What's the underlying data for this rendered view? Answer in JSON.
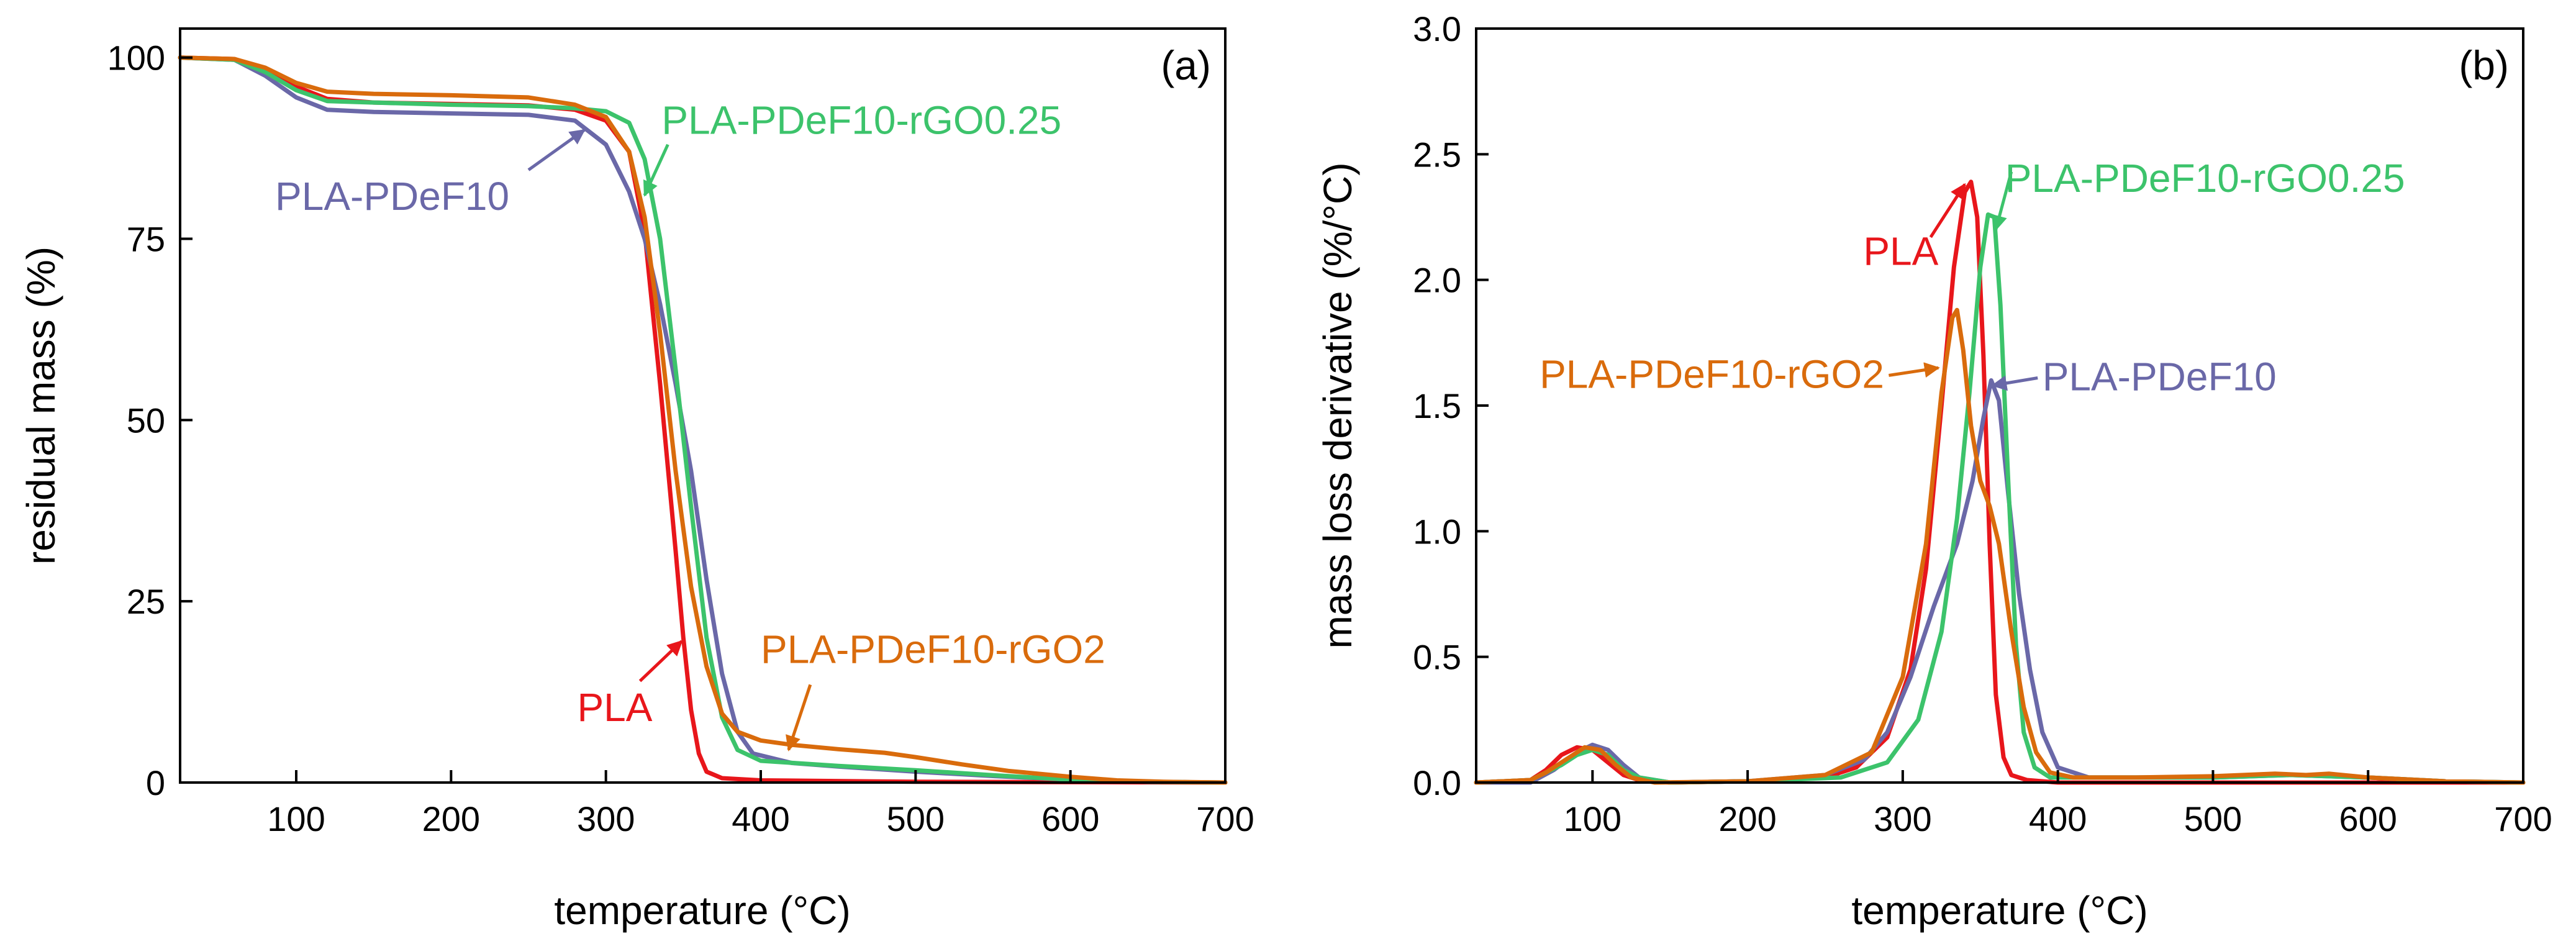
{
  "colors": {
    "PLA": "#e8161b",
    "PLA-PDeF10": "#6a68a8",
    "PLA-PDeF10-rGO0.25": "#3cc36b",
    "PLA-PDeF10-rGO2": "#d96b0c"
  },
  "chart_data": [
    {
      "type": "line",
      "panel_tag": "(a)",
      "xlabel": "temperature (°C)",
      "ylabel": "residual mass (%)",
      "xlim": [
        25,
        700
      ],
      "ylim": [
        0,
        104
      ],
      "xticks": [
        100,
        200,
        300,
        400,
        500,
        600,
        700
      ],
      "yticks": [
        0,
        25,
        50,
        75,
        100
      ],
      "grid": false,
      "series": [
        {
          "name": "PLA",
          "points": [
            [
              25,
              100
            ],
            [
              60,
              99.8
            ],
            [
              80,
              98.5
            ],
            [
              100,
              96
            ],
            [
              120,
              94.3
            ],
            [
              150,
              93.8
            ],
            [
              200,
              93.6
            ],
            [
              250,
              93.4
            ],
            [
              280,
              92.8
            ],
            [
              300,
              91.3
            ],
            [
              315,
              87
            ],
            [
              325,
              76
            ],
            [
              335,
              55
            ],
            [
              345,
              32
            ],
            [
              350,
              20
            ],
            [
              355,
              10
            ],
            [
              360,
              4
            ],
            [
              365,
              1.5
            ],
            [
              375,
              0.6
            ],
            [
              400,
              0.3
            ],
            [
              500,
              0.1
            ],
            [
              700,
              0
            ]
          ]
        },
        {
          "name": "PLA-PDeF10",
          "points": [
            [
              25,
              100
            ],
            [
              60,
              99.7
            ],
            [
              80,
              97.5
            ],
            [
              100,
              94.5
            ],
            [
              120,
              92.8
            ],
            [
              150,
              92.5
            ],
            [
              200,
              92.3
            ],
            [
              250,
              92.1
            ],
            [
              280,
              91.3
            ],
            [
              300,
              88
            ],
            [
              315,
              81.5
            ],
            [
              325,
              75
            ],
            [
              335,
              66
            ],
            [
              345,
              55
            ],
            [
              355,
              43
            ],
            [
              365,
              28
            ],
            [
              375,
              15
            ],
            [
              385,
              7
            ],
            [
              395,
              4
            ],
            [
              420,
              2.7
            ],
            [
              450,
              2.2
            ],
            [
              500,
              1.5
            ],
            [
              550,
              0.9
            ],
            [
              600,
              0.4
            ],
            [
              650,
              0.1
            ],
            [
              700,
              0
            ]
          ]
        },
        {
          "name": "PLA-PDeF10-rGO0.25",
          "points": [
            [
              25,
              100
            ],
            [
              60,
              99.7
            ],
            [
              80,
              98
            ],
            [
              100,
              95.5
            ],
            [
              120,
              94
            ],
            [
              150,
              93.8
            ],
            [
              200,
              93.5
            ],
            [
              250,
              93.3
            ],
            [
              280,
              93
            ],
            [
              300,
              92.6
            ],
            [
              315,
              91
            ],
            [
              325,
              86
            ],
            [
              335,
              75
            ],
            [
              345,
              57
            ],
            [
              355,
              38
            ],
            [
              365,
              20
            ],
            [
              375,
              9
            ],
            [
              385,
              4.5
            ],
            [
              400,
              3
            ],
            [
              450,
              2.3
            ],
            [
              500,
              1.7
            ],
            [
              550,
              1
            ],
            [
              600,
              0.4
            ],
            [
              650,
              0.1
            ],
            [
              700,
              0
            ]
          ]
        },
        {
          "name": "PLA-PDeF10-rGO2",
          "points": [
            [
              25,
              100
            ],
            [
              60,
              99.8
            ],
            [
              80,
              98.6
            ],
            [
              100,
              96.5
            ],
            [
              120,
              95.3
            ],
            [
              150,
              95
            ],
            [
              200,
              94.8
            ],
            [
              250,
              94.5
            ],
            [
              280,
              93.5
            ],
            [
              300,
              91.8
            ],
            [
              315,
              87
            ],
            [
              325,
              78
            ],
            [
              335,
              62
            ],
            [
              345,
              43
            ],
            [
              355,
              27
            ],
            [
              365,
              16
            ],
            [
              375,
              9.5
            ],
            [
              385,
              7
            ],
            [
              400,
              5.8
            ],
            [
              420,
              5.2
            ],
            [
              450,
              4.6
            ],
            [
              480,
              4.1
            ],
            [
              500,
              3.5
            ],
            [
              530,
              2.5
            ],
            [
              560,
              1.6
            ],
            [
              600,
              0.8
            ],
            [
              630,
              0.3
            ],
            [
              660,
              0.1
            ],
            [
              700,
              0
            ]
          ]
        }
      ],
      "annotations": [
        {
          "series": "PLA-PDeF10",
          "text": "PLA-PDeF10",
          "text_at": [
            162,
            79
          ],
          "anchor": "middle",
          "arrow_from": [
            250,
            84.5
          ],
          "arrow_to": [
            286,
            90
          ]
        },
        {
          "series": "PLA-PDeF10-rGO0.25",
          "text": "PLA-PDeF10-rGO0.25",
          "text_at": [
            336,
            89.5
          ],
          "anchor": "start",
          "arrow_from": [
            340,
            88
          ],
          "arrow_to": [
            325,
            81
          ]
        },
        {
          "series": "PLA",
          "text": "PLA",
          "text_at": [
            330,
            8.5
          ],
          "anchor": "end",
          "arrow_from": [
            322,
            14
          ],
          "arrow_to": [
            349,
            19.5
          ]
        },
        {
          "series": "PLA-PDeF10-rGO2",
          "text": "PLA-PDeF10-rGO2",
          "text_at": [
            400,
            16.5
          ],
          "anchor": "start",
          "arrow_from": [
            432,
            13.5
          ],
          "arrow_to": [
            418,
            4.5
          ]
        }
      ]
    },
    {
      "type": "line",
      "panel_tag": "(b)",
      "xlabel": "temperature (°C)",
      "ylabel": "mass loss derivative (%/°C)",
      "xlim": [
        25,
        700
      ],
      "ylim": [
        0,
        3.0
      ],
      "xticks": [
        100,
        200,
        300,
        400,
        500,
        600,
        700
      ],
      "yticks": [
        0.0,
        0.5,
        1.0,
        1.5,
        2.0,
        2.5,
        3.0
      ],
      "ytick_labels": [
        "0.0",
        "0.5",
        "1.0",
        "1.5",
        "2.0",
        "2.5",
        "3.0"
      ],
      "grid": false,
      "series": [
        {
          "name": "PLA",
          "points": [
            [
              25,
              0
            ],
            [
              60,
              0.01
            ],
            [
              70,
              0.05
            ],
            [
              80,
              0.11
            ],
            [
              90,
              0.14
            ],
            [
              100,
              0.13
            ],
            [
              110,
              0.08
            ],
            [
              120,
              0.03
            ],
            [
              130,
              0.01
            ],
            [
              150,
              0
            ],
            [
              200,
              0.005
            ],
            [
              250,
              0.02
            ],
            [
              270,
              0.06
            ],
            [
              290,
              0.18
            ],
            [
              305,
              0.45
            ],
            [
              315,
              0.85
            ],
            [
              325,
              1.5
            ],
            [
              333,
              2.05
            ],
            [
              340,
              2.35
            ],
            [
              344,
              2.39
            ],
            [
              348,
              2.25
            ],
            [
              352,
              1.7
            ],
            [
              356,
              0.95
            ],
            [
              360,
              0.35
            ],
            [
              365,
              0.1
            ],
            [
              370,
              0.03
            ],
            [
              380,
              0.01
            ],
            [
              400,
              0
            ],
            [
              700,
              0
            ]
          ]
        },
        {
          "name": "PLA-PDeF10",
          "points": [
            [
              25,
              0
            ],
            [
              60,
              0
            ],
            [
              75,
              0.05
            ],
            [
              90,
              0.12
            ],
            [
              100,
              0.15
            ],
            [
              110,
              0.13
            ],
            [
              120,
              0.07
            ],
            [
              130,
              0.02
            ],
            [
              140,
              0.01
            ],
            [
              150,
              0
            ],
            [
              200,
              0.005
            ],
            [
              250,
              0.03
            ],
            [
              275,
              0.09
            ],
            [
              290,
              0.2
            ],
            [
              305,
              0.42
            ],
            [
              320,
              0.7
            ],
            [
              335,
              0.95
            ],
            [
              345,
              1.2
            ],
            [
              352,
              1.45
            ],
            [
              357,
              1.6
            ],
            [
              362,
              1.52
            ],
            [
              368,
              1.15
            ],
            [
              375,
              0.75
            ],
            [
              382,
              0.45
            ],
            [
              390,
              0.2
            ],
            [
              400,
              0.06
            ],
            [
              420,
              0.02
            ],
            [
              450,
              0.02
            ],
            [
              500,
              0.02
            ],
            [
              550,
              0.03
            ],
            [
              600,
              0.02
            ],
            [
              650,
              0.005
            ],
            [
              700,
              0
            ]
          ]
        },
        {
          "name": "PLA-PDeF10-rGO0.25",
          "points": [
            [
              25,
              0
            ],
            [
              60,
              0.01
            ],
            [
              80,
              0.07
            ],
            [
              90,
              0.11
            ],
            [
              100,
              0.13
            ],
            [
              110,
              0.11
            ],
            [
              120,
              0.05
            ],
            [
              130,
              0.02
            ],
            [
              150,
              0
            ],
            [
              200,
              0.005
            ],
            [
              260,
              0.02
            ],
            [
              290,
              0.08
            ],
            [
              310,
              0.25
            ],
            [
              325,
              0.6
            ],
            [
              335,
              1.05
            ],
            [
              343,
              1.55
            ],
            [
              350,
              2.05
            ],
            [
              355,
              2.26
            ],
            [
              359,
              2.25
            ],
            [
              363,
              1.9
            ],
            [
              368,
              1.2
            ],
            [
              373,
              0.55
            ],
            [
              378,
              0.2
            ],
            [
              385,
              0.06
            ],
            [
              395,
              0.02
            ],
            [
              450,
              0.02
            ],
            [
              500,
              0.02
            ],
            [
              550,
              0.03
            ],
            [
              600,
              0.02
            ],
            [
              650,
              0.005
            ],
            [
              700,
              0
            ]
          ]
        },
        {
          "name": "PLA-PDeF10-rGO2",
          "points": [
            [
              25,
              0
            ],
            [
              60,
              0.01
            ],
            [
              70,
              0.04
            ],
            [
              85,
              0.1
            ],
            [
              95,
              0.14
            ],
            [
              105,
              0.13
            ],
            [
              115,
              0.07
            ],
            [
              125,
              0.02
            ],
            [
              140,
              0
            ],
            [
              200,
              0.005
            ],
            [
              250,
              0.03
            ],
            [
              280,
              0.12
            ],
            [
              300,
              0.42
            ],
            [
              315,
              0.95
            ],
            [
              325,
              1.55
            ],
            [
              332,
              1.85
            ],
            [
              335,
              1.88
            ],
            [
              339,
              1.72
            ],
            [
              344,
              1.42
            ],
            [
              350,
              1.2
            ],
            [
              356,
              1.1
            ],
            [
              362,
              0.95
            ],
            [
              370,
              0.6
            ],
            [
              378,
              0.3
            ],
            [
              386,
              0.12
            ],
            [
              395,
              0.04
            ],
            [
              410,
              0.02
            ],
            [
              450,
              0.02
            ],
            [
              500,
              0.025
            ],
            [
              540,
              0.035
            ],
            [
              560,
              0.03
            ],
            [
              575,
              0.035
            ],
            [
              600,
              0.02
            ],
            [
              650,
              0.005
            ],
            [
              700,
              0
            ]
          ]
        }
      ],
      "annotations": [
        {
          "series": "PLA",
          "text": "PLA",
          "text_at": [
            323,
            2.06
          ],
          "anchor": "end",
          "arrow_from": [
            318,
            2.17
          ],
          "arrow_to": [
            340,
            2.38
          ]
        },
        {
          "series": "PLA-PDeF10-rGO0.25",
          "text": "PLA-PDeF10-rGO0.25",
          "text_at": [
            366,
            2.35
          ],
          "anchor": "start",
          "arrow_from": [
            370,
            2.43
          ],
          "arrow_to": [
            360,
            2.2
          ]
        },
        {
          "series": "PLA-PDeF10-rGO2",
          "text": "PLA-PDeF10-rGO2",
          "text_at": [
            288,
            1.57
          ],
          "anchor": "end",
          "arrow_from": [
            291,
            1.62
          ],
          "arrow_to": [
            323,
            1.65
          ]
        },
        {
          "series": "PLA-PDeF10",
          "text": "PLA-PDeF10",
          "text_at": [
            390,
            1.56
          ],
          "anchor": "start",
          "arrow_from": [
            387,
            1.61
          ],
          "arrow_to": [
            358,
            1.58
          ]
        }
      ]
    }
  ]
}
